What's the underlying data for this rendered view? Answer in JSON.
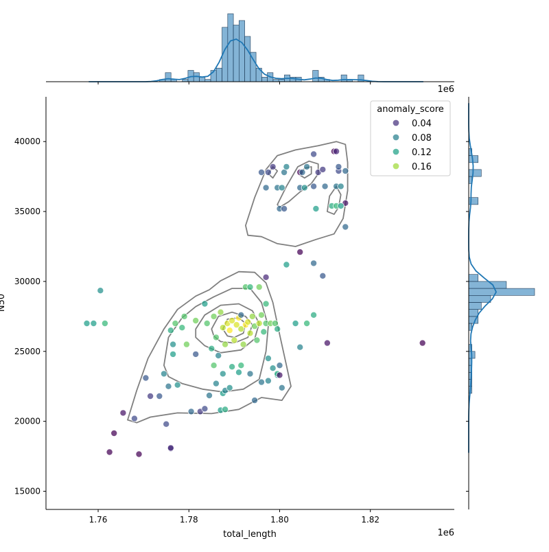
{
  "chart_data": {
    "type": "scatter",
    "xlabel": "total_length",
    "ylabel": "N50",
    "x_offset_label": "1e6",
    "top_offset_label": "1e6",
    "xlim": [
      1.7485,
      1.8385
    ],
    "ylim": [
      13700,
      43200
    ],
    "xticks": [
      1.76,
      1.78,
      1.8,
      1.82
    ],
    "xtick_labels": [
      "1.76",
      "1.78",
      "1.80",
      "1.82"
    ],
    "yticks": [
      15000,
      20000,
      25000,
      30000,
      35000,
      40000
    ],
    "ytick_labels": [
      "15000",
      "20000",
      "25000",
      "30000",
      "35000",
      "40000"
    ],
    "legend": {
      "title": "anomaly_score",
      "placement": "top-right",
      "entries": [
        {
          "label": "0.04",
          "color": "#46327e"
        },
        {
          "label": "0.08",
          "color": "#277f8e"
        },
        {
          "label": "0.12",
          "color": "#1fa187"
        },
        {
          "label": "0.16",
          "color": "#a0da39"
        }
      ]
    },
    "colormap": "viridis",
    "score_range": [
      0.02,
      0.2
    ],
    "points": [
      [
        1.7625,
        17800,
        0.02
      ],
      [
        1.769,
        17650,
        0.02
      ],
      [
        1.7635,
        19150,
        0.02
      ],
      [
        1.7655,
        20600,
        0.03
      ],
      [
        1.776,
        18050,
        0.05
      ],
      [
        1.776,
        18100,
        0.04
      ],
      [
        1.768,
        20200,
        0.06
      ],
      [
        1.7715,
        21800,
        0.05
      ],
      [
        1.7735,
        21800,
        0.07
      ],
      [
        1.775,
        19800,
        0.06
      ],
      [
        1.7825,
        20700,
        0.05
      ],
      [
        1.7835,
        20900,
        0.06
      ],
      [
        1.7755,
        22500,
        0.09
      ],
      [
        1.7745,
        23400,
        0.1
      ],
      [
        1.7705,
        23100,
        0.07
      ],
      [
        1.7775,
        22600,
        0.11
      ],
      [
        1.7805,
        20700,
        0.08
      ],
      [
        1.7845,
        21850,
        0.09
      ],
      [
        1.786,
        22700,
        0.1
      ],
      [
        1.7875,
        22000,
        0.12
      ],
      [
        1.788,
        22200,
        0.1
      ],
      [
        1.789,
        22400,
        0.11
      ],
      [
        1.787,
        20800,
        0.12
      ],
      [
        1.788,
        20850,
        0.13
      ],
      [
        1.7945,
        21500,
        0.08
      ],
      [
        1.796,
        22800,
        0.09
      ],
      [
        1.7975,
        22900,
        0.1
      ],
      [
        1.7985,
        23800,
        0.11
      ],
      [
        1.7995,
        23300,
        0.12
      ],
      [
        1.7995,
        23400,
        0.13
      ],
      [
        1.8,
        23300,
        0.03
      ],
      [
        1.8,
        24000,
        0.08
      ],
      [
        1.8005,
        22400,
        0.09
      ],
      [
        1.8035,
        27000,
        0.12
      ],
      [
        1.806,
        27000,
        0.14
      ],
      [
        1.8075,
        27600,
        0.13
      ],
      [
        1.8045,
        25300,
        0.1
      ],
      [
        1.8105,
        25600,
        0.03
      ],
      [
        1.8315,
        25600,
        0.02
      ],
      [
        1.7575,
        27000,
        0.12
      ],
      [
        1.759,
        27000,
        0.12
      ],
      [
        1.7615,
        27000,
        0.14
      ],
      [
        1.7605,
        29350,
        0.11
      ],
      [
        1.7765,
        25500,
        0.11
      ],
      [
        1.7765,
        24800,
        0.12
      ],
      [
        1.776,
        26500,
        0.13
      ],
      [
        1.777,
        27000,
        0.15
      ],
      [
        1.779,
        27500,
        0.15
      ],
      [
        1.7785,
        26700,
        0.14
      ],
      [
        1.7795,
        25500,
        0.16
      ],
      [
        1.7815,
        24800,
        0.07
      ],
      [
        1.7835,
        28400,
        0.12
      ],
      [
        1.784,
        27000,
        0.15
      ],
      [
        1.7815,
        27200,
        0.16
      ],
      [
        1.785,
        25200,
        0.13
      ],
      [
        1.786,
        26000,
        0.15
      ],
      [
        1.7855,
        27500,
        0.16
      ],
      [
        1.787,
        27800,
        0.17
      ],
      [
        1.7875,
        26700,
        0.18
      ],
      [
        1.788,
        25500,
        0.17
      ],
      [
        1.7885,
        27000,
        0.19
      ],
      [
        1.789,
        26500,
        0.2
      ],
      [
        1.7895,
        27200,
        0.19
      ],
      [
        1.79,
        25800,
        0.18
      ],
      [
        1.7905,
        26900,
        0.19
      ],
      [
        1.791,
        27400,
        0.2
      ],
      [
        1.7915,
        26600,
        0.18
      ],
      [
        1.7915,
        27600,
        0.08
      ],
      [
        1.792,
        25500,
        0.17
      ],
      [
        1.7925,
        26900,
        0.2
      ],
      [
        1.793,
        27100,
        0.19
      ],
      [
        1.7935,
        26300,
        0.18
      ],
      [
        1.794,
        27500,
        0.17
      ],
      [
        1.7945,
        26800,
        0.16
      ],
      [
        1.795,
        25800,
        0.15
      ],
      [
        1.7955,
        27000,
        0.18
      ],
      [
        1.796,
        27600,
        0.16
      ],
      [
        1.7965,
        26400,
        0.14
      ],
      [
        1.797,
        27000,
        0.15
      ],
      [
        1.798,
        27000,
        0.16
      ],
      [
        1.799,
        27000,
        0.15
      ],
      [
        1.7995,
        26600,
        0.13
      ],
      [
        1.7925,
        29600,
        0.15
      ],
      [
        1.7935,
        29600,
        0.14
      ],
      [
        1.7955,
        29600,
        0.16
      ],
      [
        1.797,
        28400,
        0.14
      ],
      [
        1.797,
        30300,
        0.04
      ],
      [
        1.7915,
        24000,
        0.14
      ],
      [
        1.791,
        23500,
        0.12
      ],
      [
        1.7895,
        23900,
        0.13
      ],
      [
        1.7875,
        23400,
        0.11
      ],
      [
        1.7865,
        24700,
        0.1
      ],
      [
        1.7855,
        24000,
        0.15
      ],
      [
        1.7935,
        23400,
        0.09
      ],
      [
        1.7975,
        24500,
        0.11
      ],
      [
        1.8015,
        31200,
        0.12
      ],
      [
        1.8045,
        32100,
        0.02
      ],
      [
        1.8075,
        31300,
        0.08
      ],
      [
        1.8095,
        30400,
        0.07
      ],
      [
        1.796,
        37800,
        0.07
      ],
      [
        1.7975,
        37800,
        0.06
      ],
      [
        1.7985,
        38200,
        0.05
      ],
      [
        1.797,
        36700,
        0.08
      ],
      [
        1.7995,
        36700,
        0.09
      ],
      [
        1.8005,
        36700,
        0.1
      ],
      [
        1.801,
        37800,
        0.09
      ],
      [
        1.8015,
        38200,
        0.1
      ],
      [
        1.8,
        35200,
        0.08
      ],
      [
        1.801,
        35200,
        0.07
      ],
      [
        1.8045,
        37800,
        0.02
      ],
      [
        1.805,
        37800,
        0.08
      ],
      [
        1.8045,
        36700,
        0.08
      ],
      [
        1.8055,
        36700,
        0.11
      ],
      [
        1.806,
        38200,
        0.09
      ],
      [
        1.8075,
        39100,
        0.06
      ],
      [
        1.8075,
        36800,
        0.07
      ],
      [
        1.808,
        35200,
        0.12
      ],
      [
        1.8085,
        37800,
        0.05
      ],
      [
        1.8095,
        38000,
        0.05
      ],
      [
        1.81,
        36800,
        0.08
      ],
      [
        1.8115,
        35400,
        0.13
      ],
      [
        1.812,
        39300,
        0.02
      ],
      [
        1.8125,
        39300,
        0.04
      ],
      [
        1.8125,
        36800,
        0.09
      ],
      [
        1.8125,
        35400,
        0.14
      ],
      [
        1.813,
        37900,
        0.06
      ],
      [
        1.813,
        38200,
        0.07
      ],
      [
        1.8135,
        36800,
        0.1
      ],
      [
        1.8145,
        37900,
        0.08
      ],
      [
        1.8145,
        35600,
        0.03
      ],
      [
        1.8145,
        33900,
        0.08
      ],
      [
        1.8135,
        35400,
        0.12
      ]
    ],
    "kde_contours": [
      [
        [
          1.7665,
          20100
        ],
        [
          1.7685,
          22200
        ],
        [
          1.771,
          24500
        ],
        [
          1.7745,
          26600
        ],
        [
          1.7775,
          28000
        ],
        [
          1.7815,
          28950
        ],
        [
          1.7845,
          29400
        ],
        [
          1.787,
          30050
        ],
        [
          1.791,
          30700
        ],
        [
          1.7945,
          30650
        ],
        [
          1.797,
          29900
        ],
        [
          1.7985,
          28500
        ],
        [
          1.8,
          26200
        ],
        [
          1.8015,
          24000
        ],
        [
          1.8025,
          22500
        ],
        [
          1.8005,
          21500
        ],
        [
          1.796,
          21700
        ],
        [
          1.791,
          20850
        ],
        [
          1.785,
          20550
        ],
        [
          1.7775,
          20600
        ],
        [
          1.7715,
          20300
        ],
        [
          1.7685,
          19900
        ],
        [
          1.7665,
          20100
        ]
      ],
      [
        [
          1.7745,
          24000
        ],
        [
          1.7755,
          26000
        ],
        [
          1.7785,
          27400
        ],
        [
          1.7815,
          28200
        ],
        [
          1.7855,
          28900
        ],
        [
          1.7895,
          29500
        ],
        [
          1.7935,
          29500
        ],
        [
          1.796,
          28500
        ],
        [
          1.7975,
          26800
        ],
        [
          1.797,
          25000
        ],
        [
          1.7955,
          23000
        ],
        [
          1.792,
          22300
        ],
        [
          1.7875,
          22100
        ],
        [
          1.783,
          22300
        ],
        [
          1.7785,
          22700
        ],
        [
          1.7755,
          23200
        ],
        [
          1.7745,
          24000
        ]
      ],
      [
        [
          1.7815,
          26600
        ],
        [
          1.7835,
          27600
        ],
        [
          1.787,
          28300
        ],
        [
          1.791,
          28400
        ],
        [
          1.794,
          27900
        ],
        [
          1.7955,
          27000
        ],
        [
          1.7945,
          25900
        ],
        [
          1.7915,
          25100
        ],
        [
          1.787,
          24900
        ],
        [
          1.7835,
          25400
        ],
        [
          1.7815,
          26000
        ],
        [
          1.7815,
          26600
        ]
      ],
      [
        [
          1.785,
          26600
        ],
        [
          1.7865,
          27500
        ],
        [
          1.7895,
          27800
        ],
        [
          1.7925,
          27500
        ],
        [
          1.794,
          26900
        ],
        [
          1.793,
          26000
        ],
        [
          1.79,
          25600
        ],
        [
          1.787,
          25700
        ],
        [
          1.7855,
          26100
        ],
        [
          1.785,
          26600
        ]
      ],
      [
        [
          1.7875,
          26600
        ],
        [
          1.7885,
          27300
        ],
        [
          1.791,
          27400
        ],
        [
          1.7925,
          27000
        ],
        [
          1.792,
          26300
        ],
        [
          1.79,
          26000
        ],
        [
          1.7885,
          26100
        ],
        [
          1.7875,
          26600
        ]
      ],
      [
        [
          1.7925,
          34000
        ],
        [
          1.7945,
          36000
        ],
        [
          1.797,
          38000
        ],
        [
          1.7995,
          39000
        ],
        [
          1.8035,
          39400
        ],
        [
          1.8085,
          39700
        ],
        [
          1.8125,
          40000
        ],
        [
          1.8145,
          39800
        ],
        [
          1.815,
          38500
        ],
        [
          1.815,
          36500
        ],
        [
          1.814,
          34500
        ],
        [
          1.812,
          33400
        ],
        [
          1.808,
          33000
        ],
        [
          1.8035,
          32500
        ],
        [
          1.7995,
          32700
        ],
        [
          1.796,
          33200
        ],
        [
          1.793,
          33300
        ],
        [
          1.7925,
          34000
        ]
      ],
      [
        [
          1.7975,
          37700
        ],
        [
          1.7985,
          38200
        ],
        [
          1.7995,
          37900
        ],
        [
          1.7985,
          37400
        ],
        [
          1.7975,
          37700
        ]
      ],
      [
        [
          1.7995,
          35500
        ],
        [
          1.8015,
          36800
        ],
        [
          1.804,
          38200
        ],
        [
          1.8065,
          38600
        ],
        [
          1.8085,
          38400
        ],
        [
          1.8085,
          37700
        ],
        [
          1.807,
          37000
        ],
        [
          1.8045,
          36400
        ],
        [
          1.802,
          35700
        ],
        [
          1.8,
          35300
        ],
        [
          1.7995,
          35500
        ]
      ],
      [
        [
          1.8045,
          37600
        ],
        [
          1.8055,
          38100
        ],
        [
          1.807,
          38200
        ],
        [
          1.807,
          37700
        ],
        [
          1.8055,
          37400
        ],
        [
          1.8045,
          37600
        ]
      ],
      [
        [
          1.8105,
          35000
        ],
        [
          1.811,
          36100
        ],
        [
          1.8125,
          36800
        ],
        [
          1.8135,
          36200
        ],
        [
          1.813,
          35300
        ],
        [
          1.812,
          34800
        ],
        [
          1.8105,
          35000
        ]
      ]
    ],
    "x_histogram": {
      "bin_edges_start": 1.7573,
      "bin_width": 0.00125,
      "bar_color": "#1f77b4",
      "counts": [
        0,
        0,
        0,
        0,
        0,
        0,
        0,
        0,
        0,
        0,
        0,
        0,
        0,
        1,
        4,
        1,
        0,
        1,
        5,
        4,
        2,
        1,
        5,
        6,
        24,
        30,
        25,
        27,
        20,
        13,
        6,
        2,
        4,
        1,
        1,
        3,
        2,
        2,
        0,
        0,
        5,
        2,
        1,
        0,
        0,
        3,
        1,
        0,
        3,
        0,
        0,
        0,
        0,
        0,
        0,
        0,
        0,
        0,
        0,
        0
      ]
    },
    "y_histogram": {
      "bin_edges_start": 17500,
      "bin_width": 500,
      "bar_color": "#1f77b4",
      "counts": [
        0,
        0,
        0,
        0,
        0,
        0,
        0,
        0,
        0,
        1,
        1,
        1,
        1,
        1,
        2,
        1,
        0,
        0,
        1,
        3,
        3,
        4,
        7,
        21,
        12,
        3,
        0,
        0,
        0,
        0,
        0,
        0,
        0,
        0,
        0,
        0,
        3,
        0,
        0,
        1,
        4,
        0,
        3,
        1,
        0,
        0,
        0,
        0,
        0,
        0,
        0
      ]
    }
  }
}
